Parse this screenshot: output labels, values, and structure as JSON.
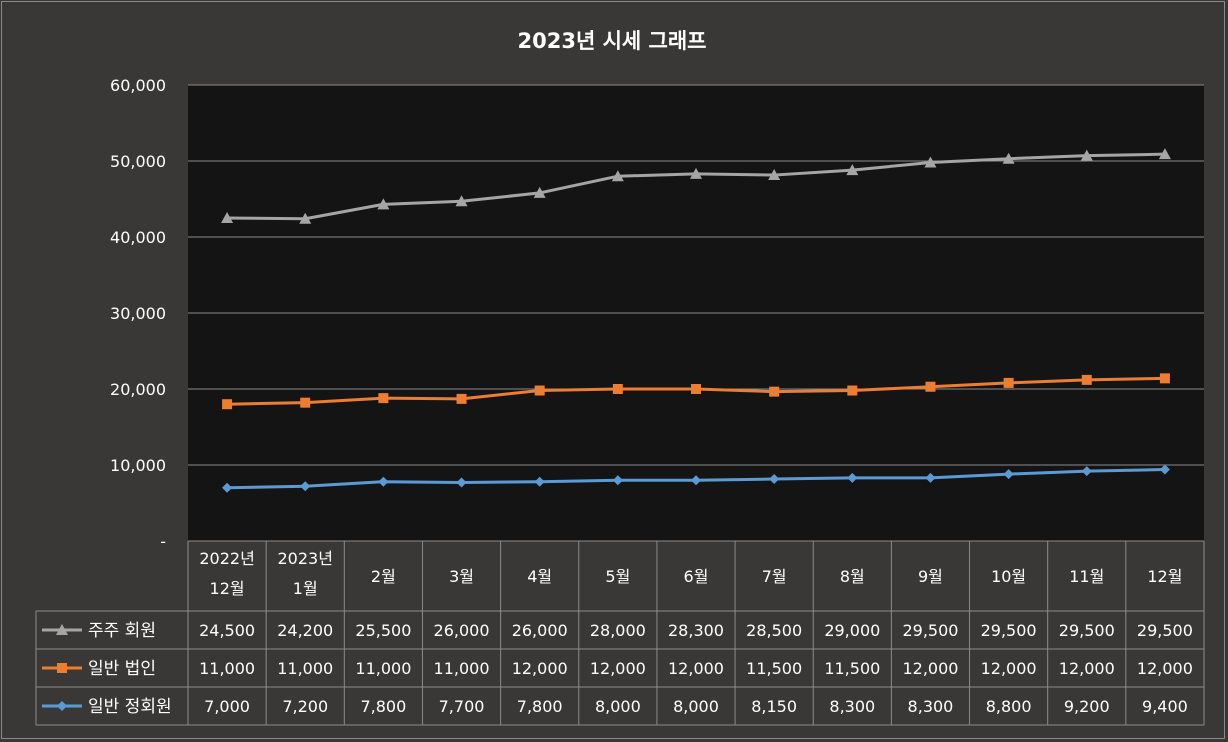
{
  "chart_data": {
    "type": "line",
    "title": "2023년 시세 그래프",
    "categories": [
      [
        "2022년",
        "12월"
      ],
      [
        "2023년",
        "1월"
      ],
      [
        "2월"
      ],
      [
        "3월"
      ],
      [
        "4월"
      ],
      [
        "5월"
      ],
      [
        "6월"
      ],
      [
        "7월"
      ],
      [
        "8월"
      ],
      [
        "9월"
      ],
      [
        "10월"
      ],
      [
        "11월"
      ],
      [
        "12월"
      ]
    ],
    "ylim": [
      0,
      60000
    ],
    "yticks": [
      {
        "value": 0,
        "label": "-"
      },
      {
        "value": 10000,
        "label": "10,000"
      },
      {
        "value": 20000,
        "label": "20,000"
      },
      {
        "value": 30000,
        "label": "30,000"
      },
      {
        "value": 40000,
        "label": "40,000"
      },
      {
        "value": 50000,
        "label": "50,000"
      },
      {
        "value": 60000,
        "label": "60,000"
      }
    ],
    "grid": true,
    "stacked": true,
    "legend": "data-table",
    "series": [
      {
        "name": "주주 회원",
        "color": "#a5a5a5",
        "marker": "triangle",
        "values": [
          24500,
          24200,
          25500,
          26000,
          26000,
          28000,
          28300,
          28500,
          29000,
          29500,
          29500,
          29500,
          29500
        ],
        "labels": [
          "24,500",
          "24,200",
          "25,500",
          "26,000",
          "26,000",
          "28,000",
          "28,300",
          "28,500",
          "29,000",
          "29,500",
          "29,500",
          "29,500",
          "29,500"
        ]
      },
      {
        "name": "일반 법인",
        "color": "#ed7d31",
        "marker": "square",
        "values": [
          11000,
          11000,
          11000,
          11000,
          12000,
          12000,
          12000,
          11500,
          11500,
          12000,
          12000,
          12000,
          12000
        ],
        "labels": [
          "11,000",
          "11,000",
          "11,000",
          "11,000",
          "12,000",
          "12,000",
          "12,000",
          "11,500",
          "11,500",
          "12,000",
          "12,000",
          "12,000",
          "12,000"
        ]
      },
      {
        "name": "일반 정회원",
        "color": "#5b9bd5",
        "marker": "diamond",
        "values": [
          7000,
          7200,
          7800,
          7700,
          7800,
          8000,
          8000,
          8150,
          8300,
          8300,
          8800,
          9200,
          9400
        ],
        "labels": [
          "7,000",
          "7,200",
          "7,800",
          "7,700",
          "7,800",
          "8,000",
          "8,000",
          "8,150",
          "8,300",
          "8,300",
          "8,800",
          "9,200",
          "9,400"
        ]
      }
    ]
  }
}
